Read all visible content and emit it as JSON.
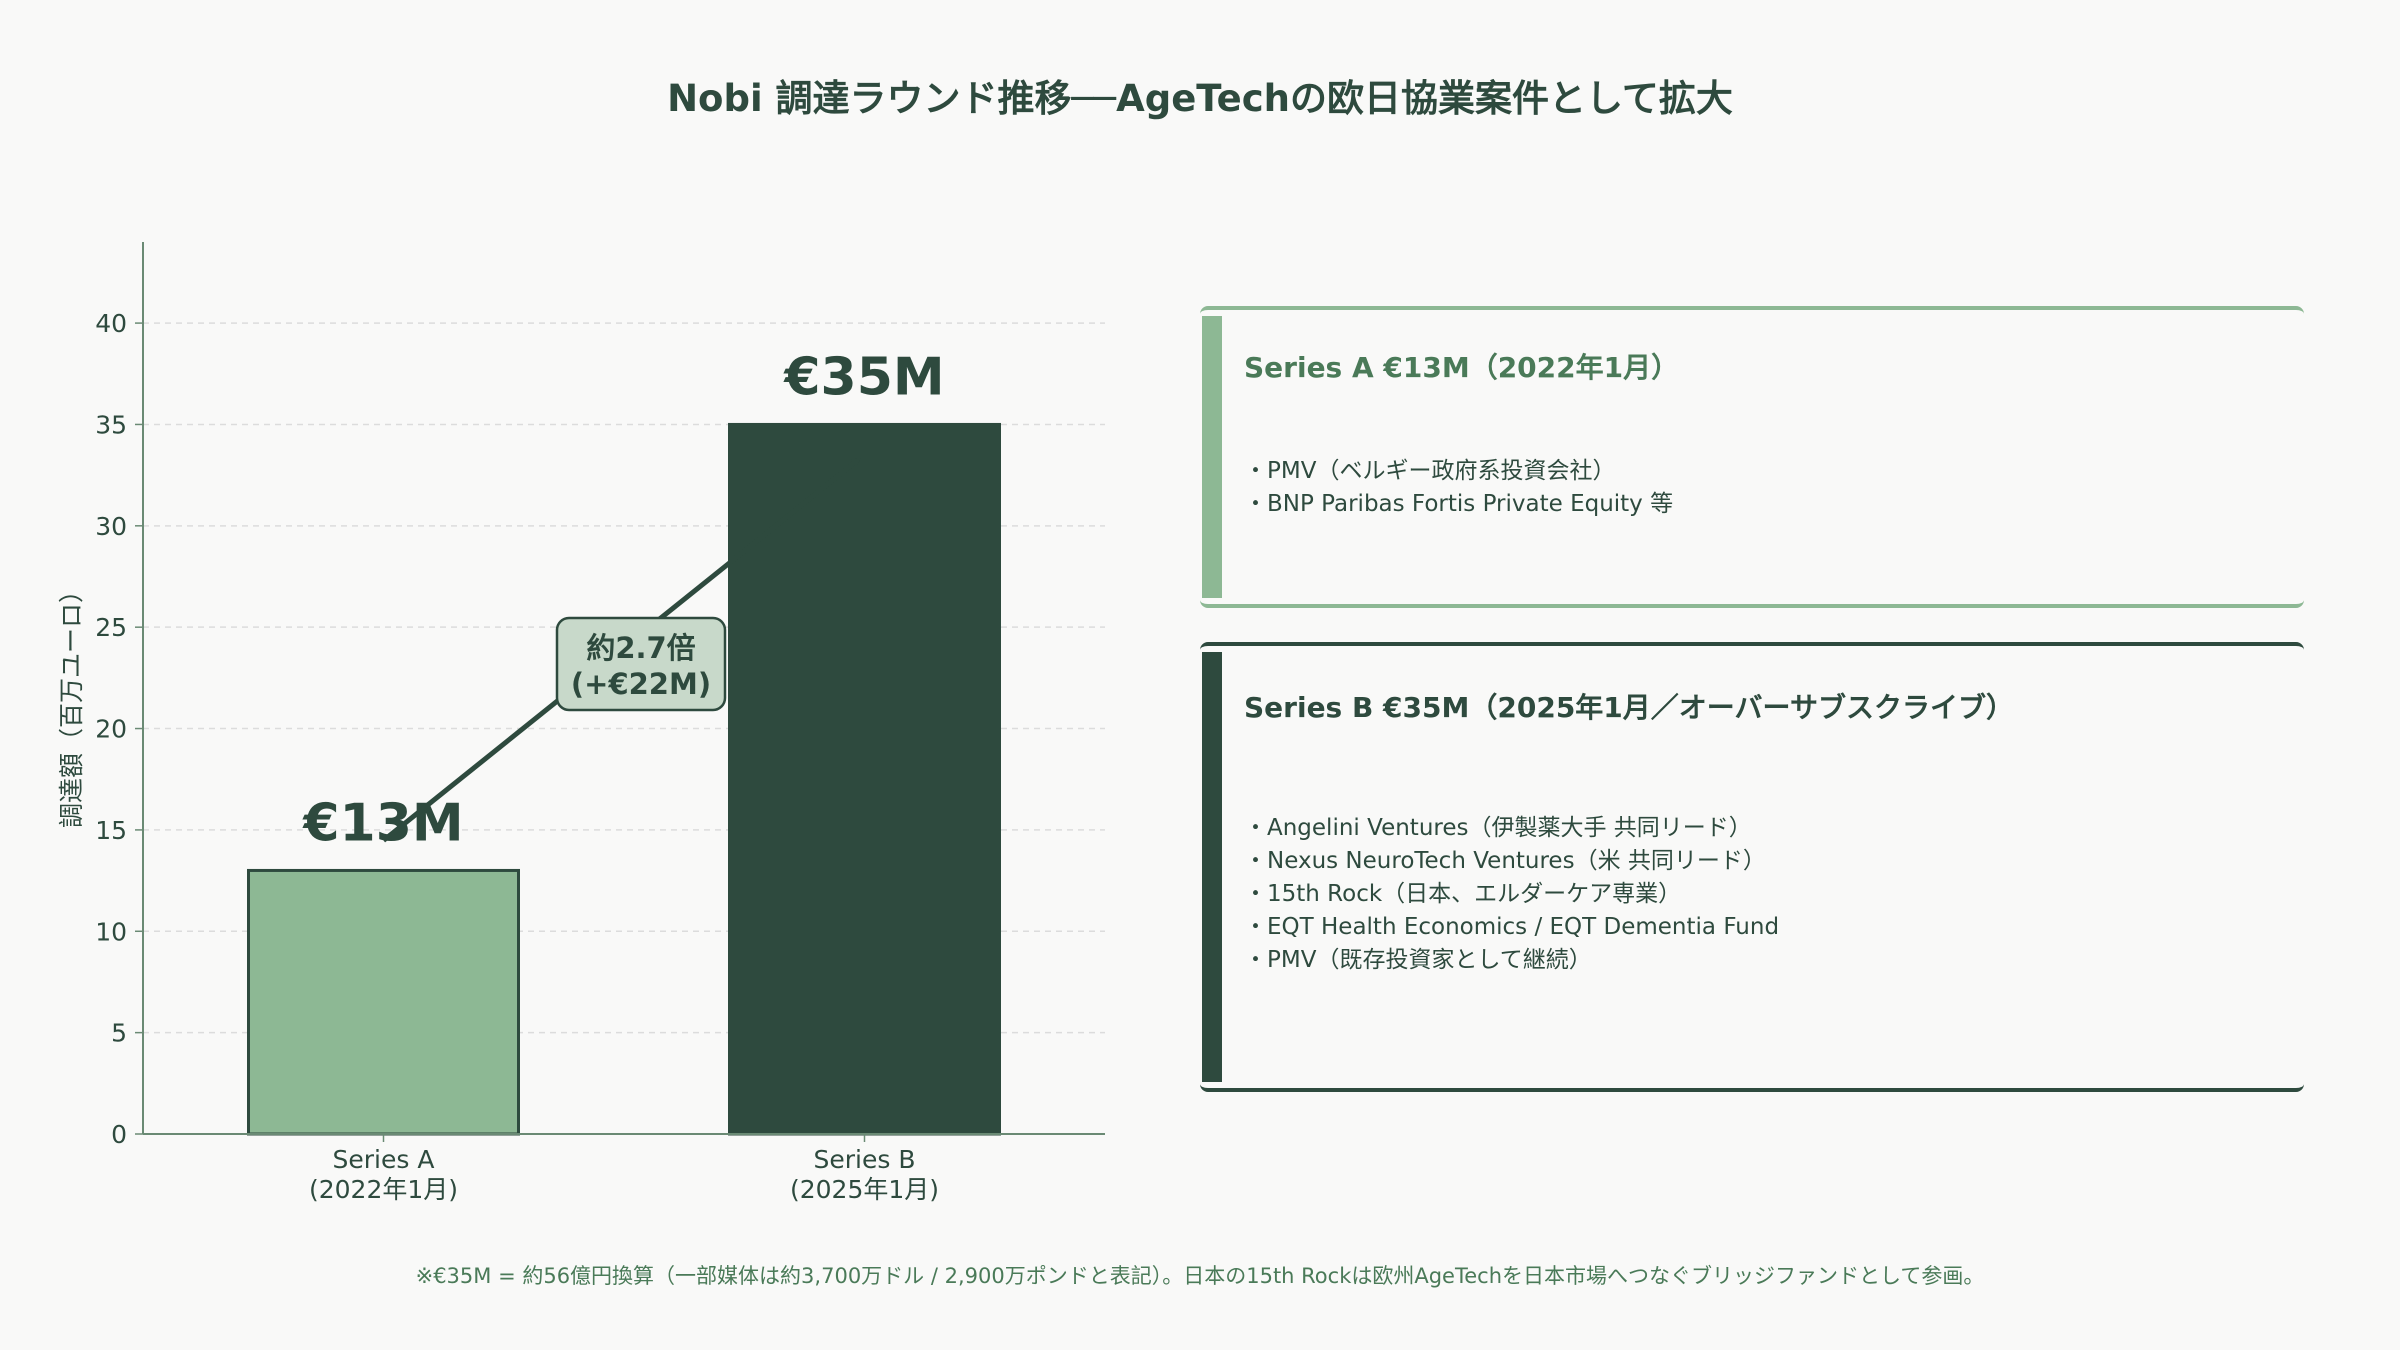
{
  "title": "Nobi 調達ラウンド推移──AgeTechの欧日協業案件として拡大",
  "chart_data": {
    "type": "bar",
    "categories": [
      "Series A\n(2022年1月)",
      "Series B\n(2025年1月)"
    ],
    "values": [
      13,
      35
    ],
    "data_labels": [
      "€13M",
      "€35M"
    ],
    "ylabel": "調達額（百万ユーロ）",
    "xlabel": "",
    "ylim": [
      0,
      44
    ],
    "yticks": [
      0,
      5,
      10,
      15,
      20,
      25,
      30,
      35,
      40
    ],
    "grid": "horizontal-dashed",
    "colors": [
      "#8db894",
      "#2e4a3e"
    ],
    "annotation": {
      "line1": "約2.7倍",
      "line2": "(+€22M)"
    }
  },
  "cards": [
    {
      "title": "Series A  €13M（2022年1月）",
      "color": "#8db894",
      "items": [
        "・PMV（ベルギー政府系投資会社）",
        "・BNP Paribas Fortis Private Equity 等"
      ]
    },
    {
      "title": "Series B  €35M（2025年1月／オーバーサブスクライブ）",
      "color": "#2e4a3e",
      "items": [
        "・Angelini Ventures（伊製薬大手 共同リード）",
        "・Nexus NeuroTech Ventures（米 共同リード）",
        "・15th Rock（日本、エルダーケア専業）",
        "・EQT Health Economics / EQT Dementia Fund",
        "・PMV（既存投資家として継続）"
      ]
    }
  ],
  "footnote": "※€35M = 約56億円換算（一部媒体は約3,700万ドル / 2,900万ポンドと表記）。日本の15th Rockは欧州AgeTechを日本市場へつなぐブリッジファンドとして参画。"
}
